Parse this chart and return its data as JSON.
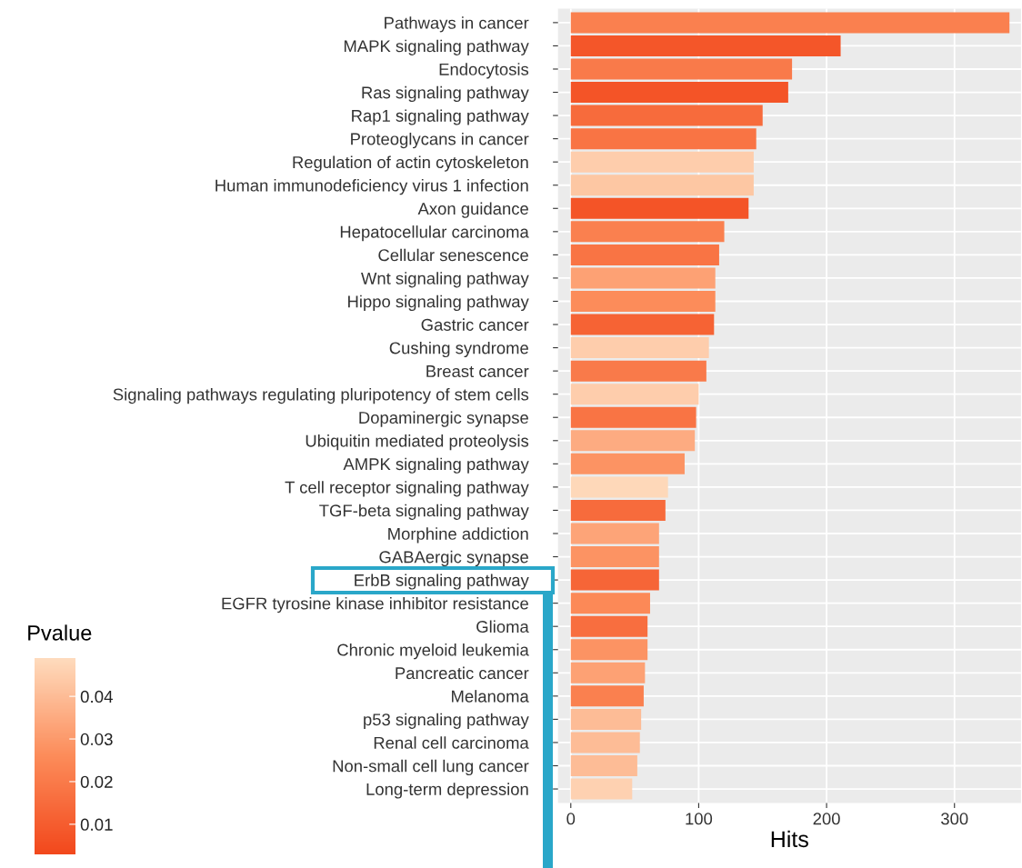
{
  "chart_data": {
    "type": "bar",
    "orientation": "horizontal",
    "xlabel": "Hits",
    "clabel": "Pvalue",
    "categories": [
      "Pathways in cancer",
      "MAPK signaling pathway",
      "Endocytosis",
      "Ras signaling pathway",
      "Rap1 signaling pathway",
      "Proteoglycans in cancer",
      "Regulation of actin cytoskeleton",
      "Human immunodeficiency virus 1 infection",
      "Axon guidance",
      "Hepatocellular carcinoma",
      "Cellular senescence",
      "Wnt signaling pathway",
      "Hippo signaling pathway",
      "Gastric cancer",
      "Cushing syndrome",
      "Breast cancer",
      "Signaling pathways regulating pluripotency of stem cells",
      "Dopaminergic synapse",
      "Ubiquitin mediated proteolysis",
      "AMPK signaling pathway",
      "T cell receptor signaling pathway",
      "TGF-beta signaling pathway",
      "Morphine addiction",
      "GABAergic synapse",
      "ErbB signaling pathway",
      "EGFR tyrosine kinase inhibitor resistance",
      "Glioma",
      "Chronic myeloid leukemia",
      "Pancreatic cancer",
      "Melanoma",
      "p53 signaling pathway",
      "Renal cell carcinoma",
      "Non-small cell lung cancer",
      "Long-term depression"
    ],
    "values": [
      343,
      211,
      173,
      170,
      150,
      145,
      143,
      143,
      139,
      120,
      116,
      113,
      113,
      112,
      108,
      106,
      100,
      98,
      97,
      89,
      76,
      74,
      69,
      69,
      69,
      62,
      60,
      60,
      58,
      57,
      55,
      54,
      52,
      48
    ],
    "cvalues": [
      0.022,
      0.008,
      0.02,
      0.007,
      0.015,
      0.018,
      0.045,
      0.043,
      0.007,
      0.022,
      0.018,
      0.032,
      0.026,
      0.012,
      0.045,
      0.02,
      0.045,
      0.018,
      0.035,
      0.028,
      0.048,
      0.015,
      0.033,
      0.028,
      0.013,
      0.025,
      0.016,
      0.028,
      0.032,
      0.022,
      0.04,
      0.04,
      0.04,
      0.046
    ],
    "clim": [
      0.003,
      0.049
    ],
    "cticks": [
      0.01,
      0.02,
      0.03,
      0.04
    ],
    "xlim": [
      -10,
      352
    ],
    "xticks": [
      0,
      100,
      200,
      300
    ],
    "grid": true
  }
}
